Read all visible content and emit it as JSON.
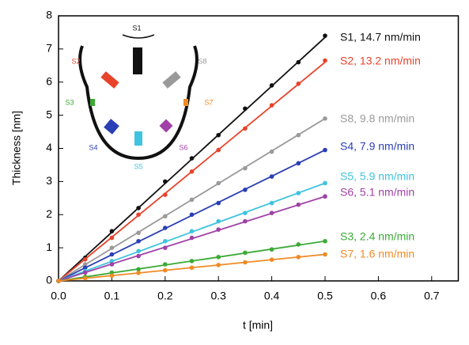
{
  "chart_data": {
    "type": "line",
    "x_label": "t [min]",
    "y_label": "Thickness [nm]",
    "xlim": [
      0,
      0.75
    ],
    "ylim": [
      0,
      8
    ],
    "xticks": [
      {
        "value": 0,
        "label": "0.0"
      },
      0.1,
      0.2,
      0.3,
      0.4,
      0.5,
      0.6,
      0.7
    ],
    "yticks": [
      0,
      1,
      2,
      3,
      4,
      5,
      6,
      7,
      8
    ],
    "x": [
      0,
      0.05,
      0.1,
      0.15,
      0.2,
      0.25,
      0.3,
      0.35,
      0.4,
      0.45,
      0.5
    ],
    "fit_x": [
      0,
      0.5
    ],
    "series": [
      {
        "name": "S1, 14.7 nm/min",
        "color": "#111111",
        "values": [
          0,
          0.7,
          1.5,
          2.2,
          3.0,
          3.7,
          4.4,
          5.2,
          5.9,
          6.6,
          7.4
        ],
        "fit": [
          0,
          7.35
        ]
      },
      {
        "name": "S2, 13.2 nm/min",
        "color": "#e8432a",
        "values": [
          0,
          0.65,
          1.3,
          2.0,
          2.6,
          3.3,
          3.95,
          4.6,
          5.3,
          5.95,
          6.65
        ],
        "fit": [
          0,
          6.6
        ]
      },
      {
        "name": "S8, 9.8 nm/min",
        "color": "#9a9a9a",
        "values": [
          0,
          0.5,
          1.0,
          1.45,
          1.95,
          2.45,
          2.95,
          3.4,
          3.9,
          4.4,
          4.9
        ],
        "fit": [
          0,
          4.9
        ]
      },
      {
        "name": "S4, 7.9 nm/min",
        "color": "#2a3fb5",
        "values": [
          0,
          0.4,
          0.8,
          1.2,
          1.6,
          2.0,
          2.35,
          2.75,
          3.15,
          3.55,
          3.95
        ],
        "fit": [
          0,
          3.95
        ]
      },
      {
        "name": "S5, 5.9 nm/min",
        "color": "#3ec3e0",
        "values": [
          0,
          0.3,
          0.6,
          0.9,
          1.2,
          1.5,
          1.8,
          2.05,
          2.35,
          2.65,
          2.95
        ],
        "fit": [
          0,
          2.95
        ]
      },
      {
        "name": "S6, 5.1 nm/min",
        "color": "#a040a8",
        "values": [
          0,
          0.25,
          0.5,
          0.75,
          1.0,
          1.3,
          1.55,
          1.8,
          2.05,
          2.3,
          2.55
        ],
        "fit": [
          0,
          2.55
        ]
      },
      {
        "name": "S3, 2.4 nm/min",
        "color": "#3aaa35",
        "values": [
          0,
          0.12,
          0.25,
          0.35,
          0.5,
          0.6,
          0.72,
          0.85,
          0.95,
          1.1,
          1.2
        ],
        "fit": [
          0,
          1.2
        ]
      },
      {
        "name": "S7, 1.6 nm/min",
        "color": "#f08a24",
        "values": [
          0,
          0.08,
          0.16,
          0.24,
          0.32,
          0.4,
          0.48,
          0.56,
          0.64,
          0.72,
          0.8
        ],
        "fit": [
          0,
          0.8
        ]
      }
    ],
    "inset": {
      "labels": [
        "S1",
        "S2",
        "S8",
        "S3",
        "S7",
        "S4",
        "S6",
        "S5"
      ]
    }
  }
}
